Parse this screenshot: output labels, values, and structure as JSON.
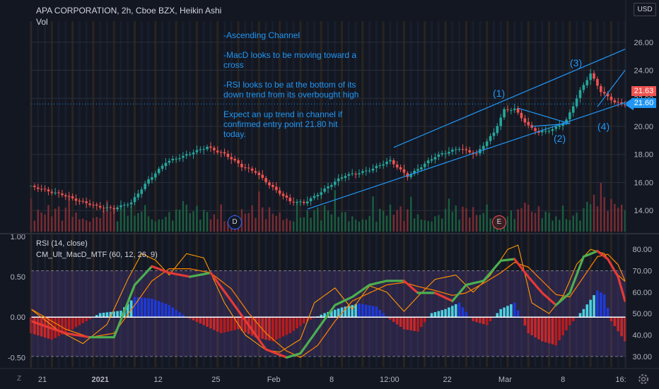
{
  "header": {
    "title": "APA CORPORATION, 2h, Cboe BZX, Heikin Ashi",
    "volume_label": "Vol",
    "currency_button": "USD"
  },
  "annotations": {
    "lines": [
      "-Ascending Channel",
      "",
      "-MacD looks to be moving toward a",
      "cross",
      "",
      "-RSI looks to be at the bottom of its",
      "down trend from its overbought high",
      "",
      "Expect an up trend in channel if",
      "confirmed entry point 21.80 hit",
      "today."
    ],
    "wave_labels": [
      "(1)",
      "(2)",
      "(3)",
      "(4)"
    ],
    "event_markers": [
      "D",
      "E"
    ]
  },
  "indicators": {
    "rsi_label": "RSI (14, close)",
    "macd_label": "CM_Ult_MacD_MTF (60, 12, 26, 9)"
  },
  "price_badges": {
    "red": "21.63",
    "blue": "21.60"
  },
  "time_axis": {
    "labels": [
      "21",
      "2021",
      "12",
      "25",
      "Feb",
      "8",
      "12:00",
      "22",
      "Mar",
      "8",
      "16:"
    ],
    "bold": [
      "2021"
    ]
  },
  "bottom_bar": {
    "zoom_icon": "Z",
    "settings_icon": "gear"
  },
  "colors": {
    "background": "#131722",
    "up_candle": "#26a69a",
    "down_candle": "#ef5350",
    "annotation": "#2196f3",
    "rsi_band": "#7e57c2",
    "macd_green": "#4caf50",
    "macd_red": "#e53935",
    "hist_up": "#4dd0e1",
    "hist_blue": "#1e3ad8",
    "hist_down": "#c62828",
    "signal_line": "#ff9800"
  },
  "chart_data": [
    {
      "type": "candlestick",
      "title": "APA CORPORATION, 2h, Cboe BZX, Heikin Ashi",
      "y_ticks": [
        14.0,
        16.0,
        18.0,
        20.0,
        22.0,
        24.0,
        26.0
      ],
      "ylim": [
        12.5,
        27.5
      ],
      "price_path": [
        [
          0,
          15.7
        ],
        [
          10,
          15.2
        ],
        [
          15,
          14.6
        ],
        [
          20,
          14.3
        ],
        [
          25,
          14.2
        ],
        [
          30,
          14.5
        ],
        [
          35,
          16.2
        ],
        [
          40,
          17.5
        ],
        [
          45,
          17.8
        ],
        [
          52,
          18.6
        ],
        [
          57,
          18.0
        ],
        [
          62,
          17.1
        ],
        [
          66,
          16.8
        ],
        [
          72,
          15.4
        ],
        [
          76,
          14.6
        ],
        [
          80,
          14.6
        ],
        [
          86,
          15.5
        ],
        [
          92,
          16.5
        ],
        [
          100,
          17.0
        ],
        [
          105,
          17.5
        ],
        [
          110,
          16.5
        ],
        [
          113,
          17.0
        ],
        [
          118,
          17.8
        ],
        [
          125,
          18.5
        ],
        [
          130,
          18.0
        ],
        [
          135,
          19.5
        ],
        [
          138,
          21.2
        ],
        [
          141,
          21.3
        ],
        [
          145,
          20.0
        ],
        [
          148,
          19.5
        ],
        [
          152,
          19.8
        ],
        [
          156,
          20.5
        ],
        [
          160,
          22.5
        ],
        [
          163,
          23.7
        ],
        [
          166,
          22.5
        ],
        [
          170,
          21.8
        ],
        [
          172,
          21.6
        ]
      ],
      "volume_range": [
        0,
        8
      ],
      "last_price": 21.6,
      "marker_D": 34,
      "marker_E": 121,
      "channel_upper": [
        [
          105,
          18.5
        ],
        [
          172,
          25.5
        ]
      ],
      "channel_lower": [
        [
          80,
          14.1
        ],
        [
          172,
          21.7
        ]
      ],
      "wedge_top": [
        [
          141,
          21.3
        ],
        [
          156,
          20.2
        ]
      ],
      "wedge_bot": [
        [
          145,
          20.0
        ],
        [
          156,
          20.2
        ]
      ],
      "projection": [
        [
          164,
          21.4
        ],
        [
          172,
          24.0
        ]
      ],
      "wave_points": [
        [
          138,
          22.2
        ],
        [
          157,
          19.0
        ],
        [
          164,
          24.5
        ],
        [
          167,
          19.5
        ]
      ]
    },
    {
      "type": "line",
      "title": "RSI (14, close)",
      "y_ticks": [
        30.0,
        40.0,
        50.0,
        60.0,
        70.0,
        80.0
      ],
      "ylim": [
        25,
        86
      ],
      "bands": [
        30,
        70
      ],
      "midline": 50,
      "rsi_path": [
        [
          0,
          52
        ],
        [
          8,
          42
        ],
        [
          15,
          36
        ],
        [
          22,
          45
        ],
        [
          28,
          66
        ],
        [
          32,
          78
        ],
        [
          36,
          75
        ],
        [
          40,
          68
        ],
        [
          45,
          78
        ],
        [
          50,
          76
        ],
        [
          56,
          55
        ],
        [
          62,
          40
        ],
        [
          68,
          33
        ],
        [
          72,
          32
        ],
        [
          78,
          38
        ],
        [
          82,
          55
        ],
        [
          88,
          62
        ],
        [
          93,
          52
        ],
        [
          98,
          63
        ],
        [
          103,
          60
        ],
        [
          108,
          51
        ],
        [
          112,
          58
        ],
        [
          117,
          66
        ],
        [
          123,
          68
        ],
        [
          128,
          60
        ],
        [
          133,
          68
        ],
        [
          138,
          80
        ],
        [
          141,
          82
        ],
        [
          145,
          55
        ],
        [
          150,
          50
        ],
        [
          154,
          58
        ],
        [
          158,
          73
        ],
        [
          162,
          80
        ],
        [
          166,
          78
        ],
        [
          170,
          68
        ],
        [
          172,
          65
        ]
      ]
    },
    {
      "type": "bar",
      "title": "CM_Ult_MacD_MTF (60, 12, 26, 9)",
      "y_ticks": [
        -0.5,
        0.0,
        0.5,
        1.0
      ],
      "ylim": [
        -0.62,
        1.0
      ],
      "zero_line": 0,
      "macd_path": [
        [
          0,
          -0.05
        ],
        [
          10,
          -0.2
        ],
        [
          17,
          -0.25
        ],
        [
          24,
          -0.25
        ],
        [
          30,
          0.4
        ],
        [
          35,
          0.63
        ],
        [
          40,
          0.55
        ],
        [
          46,
          0.5
        ],
        [
          52,
          0.55
        ],
        [
          58,
          0.2
        ],
        [
          63,
          -0.1
        ],
        [
          68,
          -0.4
        ],
        [
          74,
          -0.5
        ],
        [
          78,
          -0.45
        ],
        [
          83,
          -0.15
        ],
        [
          88,
          0.15
        ],
        [
          93,
          0.25
        ],
        [
          98,
          0.4
        ],
        [
          103,
          0.45
        ],
        [
          108,
          0.45
        ],
        [
          112,
          0.3
        ],
        [
          117,
          0.3
        ],
        [
          122,
          0.2
        ],
        [
          126,
          0.4
        ],
        [
          131,
          0.45
        ],
        [
          136,
          0.7
        ],
        [
          140,
          0.72
        ],
        [
          144,
          0.5
        ],
        [
          148,
          0.3
        ],
        [
          152,
          0.15
        ],
        [
          156,
          0.3
        ],
        [
          160,
          0.75
        ],
        [
          164,
          0.82
        ],
        [
          167,
          0.72
        ],
        [
          170,
          0.5
        ],
        [
          172,
          0.2
        ]
      ],
      "signal_path": [
        [
          0,
          0.1
        ],
        [
          10,
          -0.15
        ],
        [
          17,
          -0.25
        ],
        [
          24,
          -0.2
        ],
        [
          30,
          0.15
        ],
        [
          35,
          0.45
        ],
        [
          40,
          0.6
        ],
        [
          46,
          0.6
        ],
        [
          52,
          0.55
        ],
        [
          58,
          0.35
        ],
        [
          63,
          0.05
        ],
        [
          68,
          -0.2
        ],
        [
          74,
          -0.42
        ],
        [
          78,
          -0.5
        ],
        [
          83,
          -0.35
        ],
        [
          88,
          -0.05
        ],
        [
          93,
          0.2
        ],
        [
          98,
          0.3
        ],
        [
          103,
          0.4
        ],
        [
          108,
          0.43
        ],
        [
          112,
          0.38
        ],
        [
          117,
          0.33
        ],
        [
          122,
          0.27
        ],
        [
          126,
          0.3
        ],
        [
          131,
          0.42
        ],
        [
          136,
          0.55
        ],
        [
          140,
          0.68
        ],
        [
          144,
          0.62
        ],
        [
          148,
          0.45
        ],
        [
          152,
          0.28
        ],
        [
          156,
          0.25
        ],
        [
          160,
          0.5
        ],
        [
          164,
          0.75
        ],
        [
          167,
          0.78
        ],
        [
          170,
          0.65
        ],
        [
          172,
          0.45
        ]
      ],
      "histogram_path": [
        [
          0,
          -0.2
        ],
        [
          6,
          -0.28
        ],
        [
          12,
          -0.15
        ],
        [
          16,
          -0.05
        ],
        [
          20,
          0.05
        ],
        [
          26,
          0.08
        ],
        [
          30,
          0.25
        ],
        [
          35,
          0.23
        ],
        [
          40,
          0.15
        ],
        [
          45,
          0.0
        ],
        [
          50,
          -0.1
        ],
        [
          55,
          -0.2
        ],
        [
          60,
          -0.15
        ],
        [
          65,
          -0.25
        ],
        [
          70,
          -0.3
        ],
        [
          75,
          -0.2
        ],
        [
          80,
          -0.05
        ],
        [
          85,
          0.05
        ],
        [
          90,
          0.12
        ],
        [
          95,
          0.17
        ],
        [
          100,
          0.13
        ],
        [
          104,
          -0.03
        ],
        [
          108,
          -0.15
        ],
        [
          112,
          -0.18
        ],
        [
          116,
          0.05
        ],
        [
          120,
          0.1
        ],
        [
          124,
          0.18
        ],
        [
          128,
          -0.05
        ],
        [
          132,
          -0.1
        ],
        [
          136,
          0.1
        ],
        [
          140,
          0.18
        ],
        [
          144,
          -0.2
        ],
        [
          148,
          -0.3
        ],
        [
          152,
          -0.35
        ],
        [
          156,
          -0.1
        ],
        [
          160,
          0.1
        ],
        [
          164,
          0.33
        ],
        [
          166,
          0.28
        ],
        [
          168,
          -0.05
        ],
        [
          172,
          -0.3
        ]
      ]
    }
  ]
}
